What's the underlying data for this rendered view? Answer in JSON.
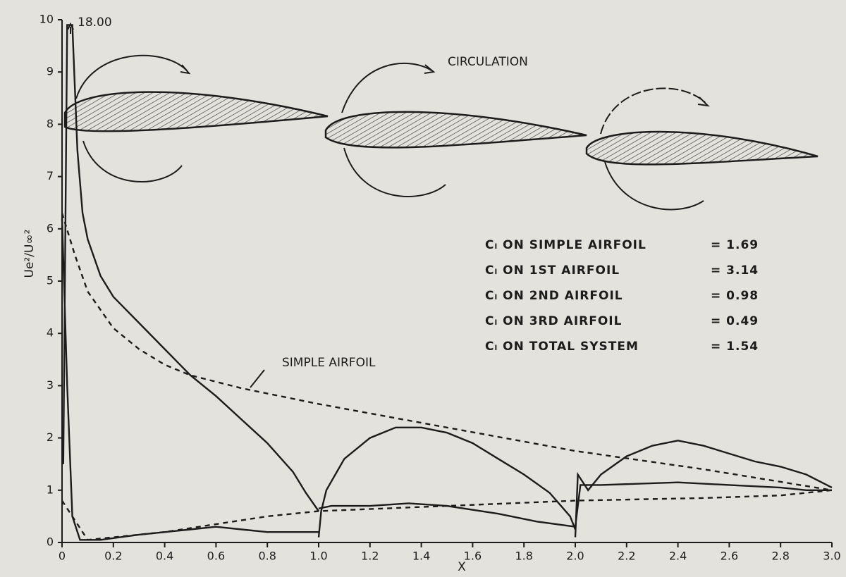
{
  "chart_data": {
    "type": "line",
    "xlabel": "X",
    "ylabel": "Ue²/U∞²",
    "xlim": [
      0,
      3.0
    ],
    "ylim": [
      0,
      10
    ],
    "xticks": [
      0,
      0.2,
      0.4,
      0.6,
      0.8,
      {
        "value": 1,
        "label": "1.0"
      },
      1.2,
      1.4,
      1.6,
      1.8,
      {
        "value": 2,
        "label": "2.0"
      },
      2.2,
      2.4,
      2.6,
      2.8,
      {
        "value": 3,
        "label": "3.0"
      }
    ],
    "yticks": [
      0,
      1,
      2,
      3,
      4,
      5,
      6,
      7,
      8,
      9,
      10
    ],
    "series": [
      {
        "color": "#1c1c1c",
        "dash": false,
        "x": [
          0.005,
          0.02,
          0.04,
          0.06,
          0.08,
          0.1,
          0.15,
          0.2,
          0.3,
          0.4,
          0.5,
          0.6,
          0.7,
          0.8,
          0.9,
          0.95,
          1.0,
          null,
          0.0,
          0.02,
          0.04,
          0.07,
          0.15,
          0.3,
          0.5,
          0.6,
          0.7,
          0.8,
          0.95,
          1.0,
          null,
          1.0,
          1.01,
          1.03,
          1.1,
          1.2,
          1.3,
          1.4,
          1.5,
          1.6,
          1.7,
          1.8,
          1.9,
          1.98,
          2.0,
          null,
          1.0,
          1.05,
          1.2,
          1.35,
          1.5,
          1.7,
          1.85,
          2.0,
          null,
          2.0,
          2.01,
          2.05,
          2.1,
          2.2,
          2.3,
          2.4,
          2.5,
          2.6,
          2.7,
          2.8,
          2.9,
          3.0,
          null,
          2.0,
          2.02,
          2.1,
          2.4,
          2.6,
          2.8,
          2.9,
          3.0
        ],
        "values": [
          1.5,
          9.9,
          9.9,
          7.5,
          6.3,
          5.8,
          5.1,
          4.7,
          4.2,
          3.7,
          3.2,
          2.8,
          2.35,
          1.9,
          1.35,
          0.95,
          0.6,
          null,
          6.2,
          3.0,
          0.5,
          0.05,
          0.05,
          0.15,
          0.25,
          0.3,
          0.25,
          0.2,
          0.2,
          0.2,
          null,
          0.1,
          0.6,
          1.0,
          1.6,
          2.0,
          2.2,
          2.2,
          2.1,
          1.9,
          1.6,
          1.3,
          0.95,
          0.5,
          0.25,
          null,
          0.65,
          0.7,
          0.7,
          0.75,
          0.7,
          0.55,
          0.4,
          0.3,
          null,
          0.1,
          1.3,
          1.0,
          1.3,
          1.65,
          1.85,
          1.95,
          1.85,
          1.7,
          1.55,
          1.45,
          1.3,
          1.05,
          null,
          0.3,
          1.1,
          1.1,
          1.15,
          1.1,
          1.05,
          1.0,
          1.0
        ]
      },
      {
        "color": "#1c1c1c",
        "dash": true,
        "x": [
          0.0,
          0.05,
          0.1,
          0.2,
          0.3,
          0.4,
          0.5,
          0.7,
          1.0,
          1.5,
          2.0,
          2.5,
          3.0,
          null,
          0.0,
          0.1,
          0.2,
          0.4,
          0.6,
          0.8,
          1.0,
          1.5,
          2.0,
          2.5,
          2.8,
          3.0
        ],
        "values": [
          6.3,
          5.5,
          4.8,
          4.1,
          3.7,
          3.4,
          3.2,
          2.95,
          2.65,
          2.2,
          1.75,
          1.4,
          1.0,
          null,
          0.8,
          0.05,
          0.1,
          0.2,
          0.35,
          0.5,
          0.6,
          0.7,
          0.8,
          0.85,
          0.9,
          1.0
        ]
      }
    ],
    "annotations": {
      "peak": "18.00",
      "circulation": "CIRCULATION",
      "simple": "SIMPLE AIRFOIL"
    },
    "coefficients": [
      {
        "label": "Cₗ ON SIMPLE AIRFOIL",
        "value": "= 1.69"
      },
      {
        "label": "Cₗ ON  1ST  AIRFOIL",
        "value": "= 3.14"
      },
      {
        "label": "Cₗ ON  2ND  AIRFOIL",
        "value": "= 0.98"
      },
      {
        "label": "Cₗ ON  3RD  AIRFOIL",
        "value": "= 0.49"
      },
      {
        "label": "Cₗ ON TOTAL SYSTEM",
        "value": "= 1.54"
      }
    ]
  }
}
